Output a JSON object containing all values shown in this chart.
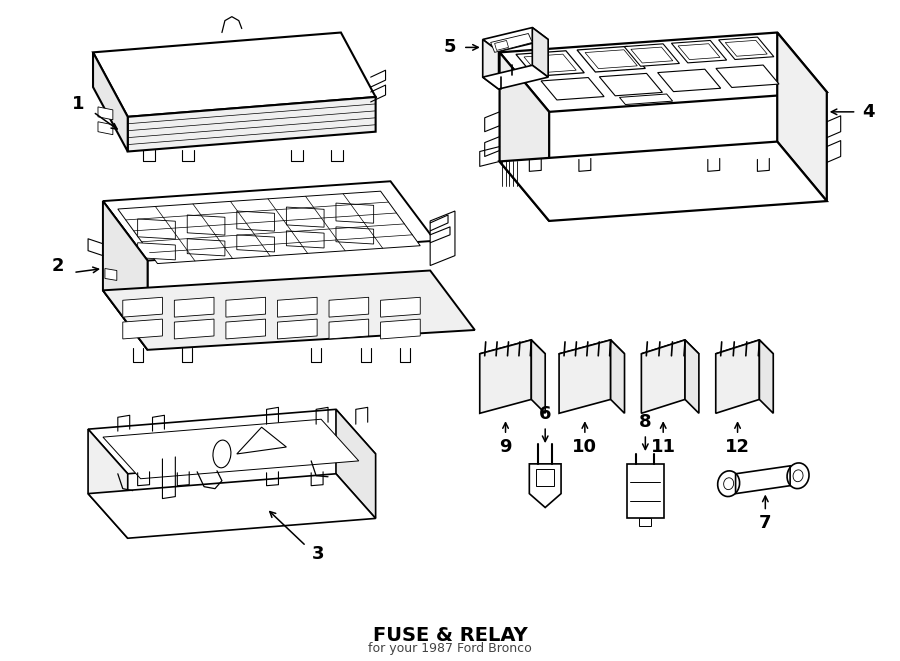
{
  "title": "FUSE & RELAY",
  "subtitle": "for your 1987 Ford Bronco",
  "bg_color": "#ffffff",
  "lc": "#000000",
  "lw": 1.2,
  "fs_label": 13
}
